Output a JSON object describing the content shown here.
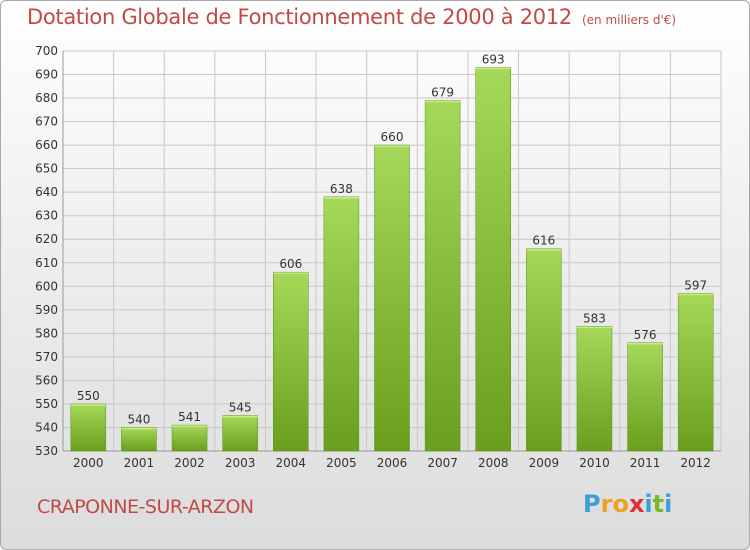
{
  "header": {
    "title": "Dotation Globale de Fonctionnement de 2000 à 2012",
    "unit": "(en milliers d'€)"
  },
  "footer": {
    "commune": "CRAPONNE-SUR-ARZON",
    "logo": [
      "P",
      "r",
      "o",
      "x",
      "i",
      "t",
      "i"
    ],
    "logo_colors": [
      "#3aa0d8",
      "#f0a020",
      "#f0a020",
      "#e03030",
      "#3aa0d8",
      "#78b82a",
      "#3aa0d8"
    ]
  },
  "colors": {
    "bar_light": "#a6d85a",
    "bar_dark": "#6a9e1c",
    "bar_edge": "#5e8f16",
    "title": "#c24a44",
    "grid": "#c8c8c8"
  },
  "chart_data": {
    "type": "bar",
    "title": "Dotation Globale de Fonctionnement de 2000 à 2012",
    "subtitle": "(en milliers d'€)",
    "xlabel": "",
    "ylabel": "",
    "categories": [
      "2000",
      "2001",
      "2002",
      "2003",
      "2004",
      "2005",
      "2006",
      "2007",
      "2008",
      "2009",
      "2010",
      "2011",
      "2012"
    ],
    "values": [
      550,
      540,
      541,
      545,
      606,
      638,
      660,
      679,
      693,
      616,
      583,
      576,
      597
    ],
    "ylim": [
      530,
      700
    ],
    "yticks": [
      530,
      540,
      550,
      560,
      570,
      580,
      590,
      600,
      610,
      620,
      630,
      640,
      650,
      660,
      670,
      680,
      690,
      700
    ],
    "grid": true,
    "legend": "none"
  }
}
